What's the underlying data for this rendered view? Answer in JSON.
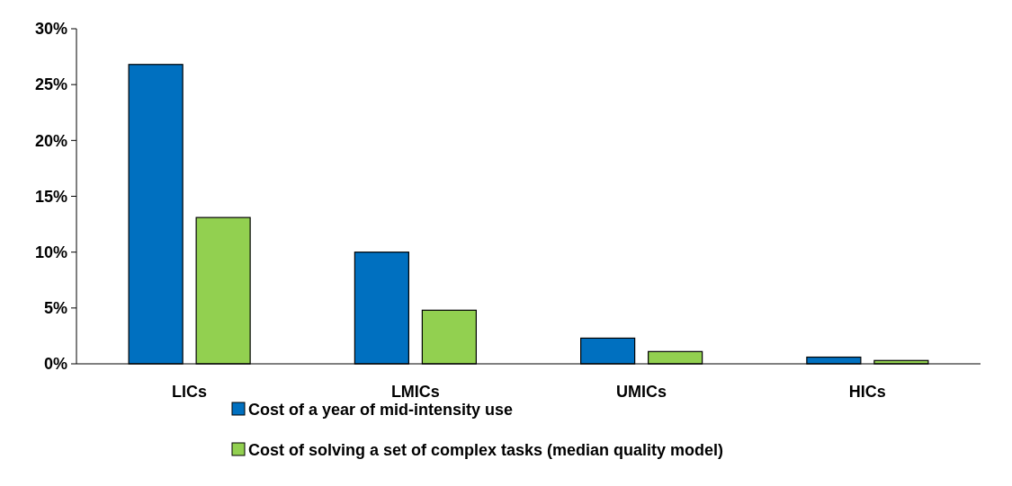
{
  "chart_data": {
    "type": "bar",
    "categories": [
      "LICs",
      "LMICs",
      "UMICs",
      "HICs"
    ],
    "series": [
      {
        "name": "Cost of a year of mid-intensity use",
        "color": "#0070c0",
        "values": [
          26.8,
          10.0,
          2.3,
          0.6
        ]
      },
      {
        "name": "Cost of solving a set of complex tasks (median quality model)",
        "color": "#92d050",
        "values": [
          13.1,
          4.8,
          1.1,
          0.3
        ]
      }
    ],
    "ylim": [
      0,
      30
    ],
    "yticks": [
      {
        "value": 0,
        "label": "0%"
      },
      {
        "value": 5,
        "label": "5%"
      },
      {
        "value": 10,
        "label": "10%"
      },
      {
        "value": 15,
        "label": "15%"
      },
      {
        "value": 20,
        "label": "20%"
      },
      {
        "value": 25,
        "label": "25%"
      },
      {
        "value": 30,
        "label": "30%"
      }
    ],
    "grid": false,
    "legend": "bottom"
  }
}
